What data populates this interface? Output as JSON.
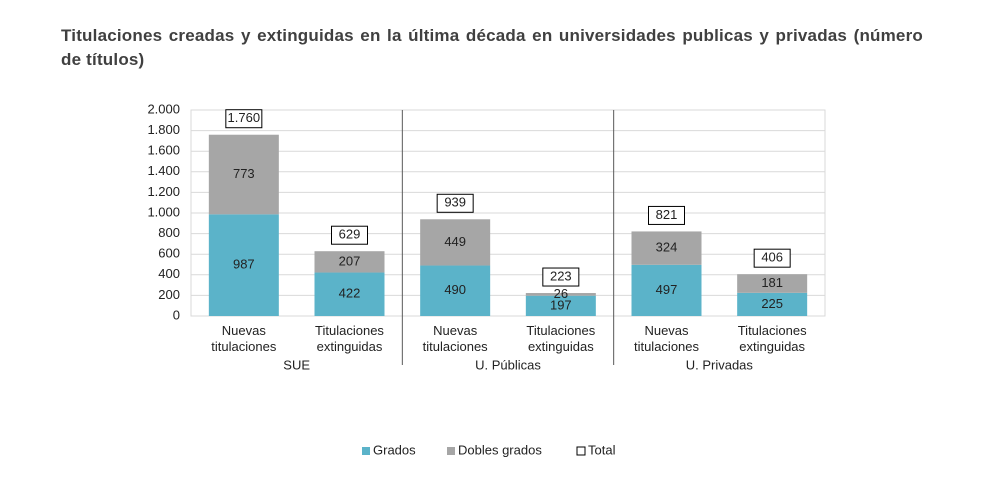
{
  "chart_data": {
    "type": "stacked-bar",
    "title": "Titulaciones creadas y extinguidas en la última década en universidades publicas y privadas (número de títulos)",
    "categories": [
      "Nuevas titulaciones",
      "Titulaciones extinguidas",
      "Nuevas titulaciones",
      "Titulaciones extinguidas",
      "Nuevas titulaciones",
      "Titulaciones extinguidas"
    ],
    "groups": [
      "SUE",
      "U. Públicas",
      "U. Privadas"
    ],
    "series": [
      {
        "name": "Grados",
        "color": "#5bb3c9",
        "values": [
          987,
          422,
          490,
          197,
          497,
          225
        ]
      },
      {
        "name": "Dobles grados",
        "color": "#a6a6a6",
        "values": [
          773,
          207,
          449,
          26,
          324,
          181
        ]
      },
      {
        "name": "Total",
        "color": "#000000",
        "values": [
          1760,
          629,
          939,
          223,
          821,
          406
        ],
        "value_labels": [
          "1.760",
          "629",
          "939",
          "223",
          "821",
          "406"
        ]
      }
    ],
    "ylim": [
      0,
      2000
    ],
    "yticks": [
      0,
      200,
      400,
      600,
      800,
      {
        "value": 1000,
        "label": "1.000"
      },
      {
        "value": 1200,
        "label": "1.200"
      },
      {
        "value": 1400,
        "label": "1.400"
      },
      {
        "value": 1600,
        "label": "1.600"
      },
      {
        "value": 1800,
        "label": "1.800"
      },
      {
        "value": 2000,
        "label": "2.000"
      }
    ],
    "grid": true,
    "legend": "bottom"
  }
}
